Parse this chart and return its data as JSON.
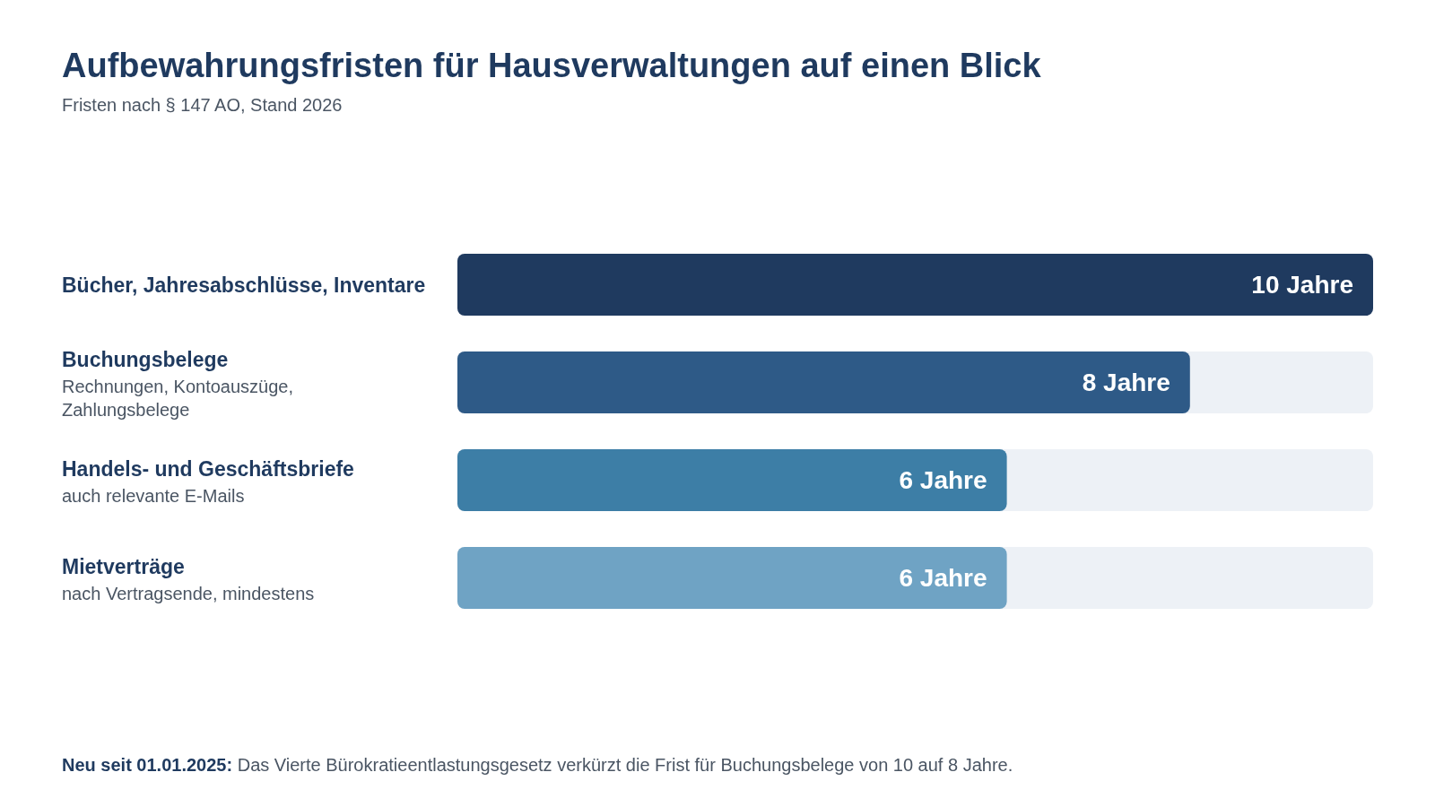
{
  "chart_data": {
    "type": "bar",
    "orientation": "horizontal",
    "title": "Aufbewahrungsfristen für Hausverwaltungen auf einen Blick",
    "subtitle": "Fristen nach § 147 AO, Stand 2026",
    "categories": [
      "Bücher, Jahresabschlüsse, Inventare",
      "Buchungsbelege\nRechnungen, Kontoauszüge, Zahlungsbelege",
      "Handels- und Geschäftsbriefe\nauch relevante E-Mails",
      "Mietverträge\nnach Vertragsende, mindestens"
    ],
    "values": [
      10,
      8,
      6,
      6
    ],
    "colors": [
      "#1f3a5f",
      "#2e5a87",
      "#3d7ea6",
      "#6fa3c4"
    ],
    "value_labels": [
      "10 Jahre",
      "8 Jahre",
      "6 Jahre",
      "6 Jahre"
    ],
    "xlim": [
      0,
      10
    ],
    "tick_labels": false,
    "annotations": [
      "Neu seit 01.01.2025: Das Vierte Bürokratieentlastungsgesetz verkürzt die Frist für Buchungsbelege von 10 auf 8 Jahre."
    ]
  }
}
